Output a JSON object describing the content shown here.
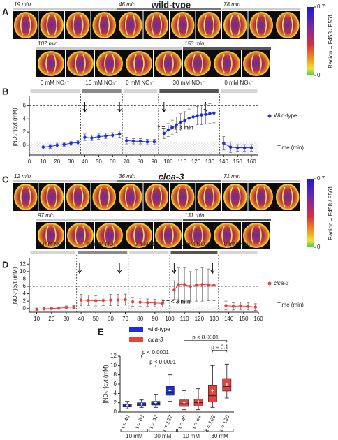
{
  "panel_labels": [
    "A",
    "B",
    "C",
    "D",
    "E"
  ],
  "image_panels": [
    {
      "title": "wild-type",
      "title_color": "#5a2fd8",
      "time_labels": [
        "19 min",
        "46 min",
        "78 min",
        "107 min",
        "153 min"
      ],
      "colorbar_label": "Ranion = F458 / F561",
      "colorbar_lim": [
        0,
        0.7
      ],
      "colorbar_ticks": [
        0.7,
        0
      ]
    },
    {
      "title": "clca-3",
      "title_color": "#e8262b",
      "time_labels": [
        "12 min",
        "36 min",
        "71 min",
        "97 min",
        "131 min"
      ],
      "colorbar_label": "Ranion = F458 / F561",
      "colorbar_lim": [
        0,
        0.7
      ],
      "colorbar_ticks": [
        0.7,
        0
      ]
    }
  ],
  "chart_data": [
    {
      "type": "line",
      "y_label": "[NO₃⁻]cyt (mM)",
      "x_label": "Time (min)",
      "annotation": "τ = 15 ± 3 min",
      "xlim": [
        0,
        165
      ],
      "xticks": [
        0,
        10,
        20,
        30,
        40,
        50,
        60,
        70,
        80,
        90,
        100,
        110,
        120,
        130,
        140,
        150,
        160
      ],
      "ylim": [
        -1.5,
        7
      ],
      "yticks": [
        0,
        2,
        4,
        6
      ],
      "reference_line": 6,
      "shaded_below": 0.5,
      "phases": [
        {
          "label": "0 mM NO₃⁻",
          "start": 0,
          "end": 37,
          "color": "#d6d6d6"
        },
        {
          "label": "10 mM NO₃⁻",
          "start": 37,
          "end": 67,
          "color": "#8c8c8c"
        },
        {
          "label": "0 mM NO₃⁻",
          "start": 67,
          "end": 93,
          "color": "#d6d6d6"
        },
        {
          "label": "30 mM NO₃⁻",
          "start": 93,
          "end": 137,
          "color": "#555555"
        },
        {
          "label": "0 mM NO₃⁻",
          "start": 137,
          "end": 165,
          "color": "#d6d6d6"
        }
      ],
      "arrows": [
        40,
        65,
        97,
        127
      ],
      "x": [
        10,
        15,
        20,
        25,
        30,
        35,
        37,
        40,
        45,
        50,
        55,
        60,
        65,
        67,
        70,
        75,
        80,
        85,
        90,
        93,
        97,
        100,
        103,
        106,
        109,
        112,
        115,
        118,
        121,
        124,
        127,
        130,
        133,
        137,
        140,
        145,
        150,
        155,
        160
      ],
      "series": [
        {
          "name": "Wild-type",
          "color": "#1a2ee0",
          "italic": false,
          "values": [
            -0.3,
            -0.2,
            0,
            0.1,
            0.3,
            0.4,
            null,
            1.2,
            1.1,
            1.3,
            1.4,
            1.5,
            1.7,
            null,
            0.7,
            0.6,
            0.6,
            0.5,
            0.5,
            null,
            1.8,
            2.3,
            2.7,
            3.1,
            3.5,
            3.8,
            4.1,
            4.3,
            4.5,
            4.6,
            4.7,
            4.8,
            4.9,
            null,
            0.3,
            -0.3,
            -0.4,
            -0.4,
            -0.4
          ],
          "errors": [
            0.3,
            0.3,
            0.3,
            0.3,
            0.3,
            0.3,
            null,
            0.5,
            0.4,
            0.4,
            0.4,
            0.4,
            0.5,
            null,
            0.5,
            0.4,
            0.4,
            0.4,
            0.4,
            null,
            0.8,
            1.0,
            1.1,
            1.2,
            1.3,
            1.3,
            1.4,
            1.4,
            1.4,
            1.5,
            1.5,
            1.5,
            1.5,
            null,
            1.0,
            0.8,
            0.5,
            0.5,
            0.5
          ]
        }
      ]
    },
    {
      "type": "line",
      "y_label": "[NO₃⁻]cyt (mM)",
      "x_label": "Time (min)",
      "annotation": "τ = < 3 min",
      "xlim": [
        5,
        160
      ],
      "xticks": [
        10,
        20,
        30,
        40,
        50,
        60,
        70,
        80,
        90,
        100,
        110,
        120,
        130,
        140,
        150,
        160
      ],
      "ylim": [
        -1,
        13
      ],
      "yticks": [
        0,
        2,
        4,
        6,
        8,
        10,
        12
      ],
      "reference_line": 6,
      "shaded_below": 0.5,
      "phases": [
        {
          "label": "0 mM NO₃⁻",
          "start": 5,
          "end": 37,
          "color": "#d6d6d6"
        },
        {
          "label": "10 mM NO₃⁻",
          "start": 37,
          "end": 72,
          "color": "#8c8c8c"
        },
        {
          "label": "0 mM NO₃⁻",
          "start": 72,
          "end": 100,
          "color": "#d6d6d6"
        },
        {
          "label": "30 mM NO₃⁻",
          "start": 100,
          "end": 133,
          "color": "#555555"
        },
        {
          "label": "0 mM NO₃⁻",
          "start": 133,
          "end": 160,
          "color": "#d6d6d6"
        }
      ],
      "arrows": [
        39,
        66,
        103,
        129
      ],
      "x": [
        10,
        15,
        20,
        25,
        30,
        35,
        37,
        40,
        45,
        50,
        55,
        60,
        65,
        70,
        72,
        75,
        80,
        85,
        90,
        95,
        100,
        103,
        106,
        110,
        114,
        118,
        122,
        126,
        130,
        133,
        138,
        143,
        148,
        153,
        158
      ],
      "series": [
        {
          "name": "clca-3",
          "color": "#e8413c",
          "italic": true,
          "values": [
            -0.2,
            -0.1,
            0,
            0.1,
            0.3,
            0.4,
            null,
            2.3,
            2.2,
            2.1,
            2.2,
            2.3,
            2.3,
            2.4,
            null,
            1.8,
            1.7,
            1.6,
            1.5,
            1.4,
            null,
            5,
            6.5,
            6.5,
            6,
            6.3,
            6.5,
            6.4,
            6.3,
            null,
            0.8,
            0.6,
            0.7,
            0.6,
            0.4
          ],
          "errors": [
            0.3,
            0.3,
            0.3,
            0.3,
            0.4,
            0.4,
            null,
            1.5,
            1.4,
            1.4,
            1.4,
            1.5,
            1.5,
            1.5,
            null,
            1.2,
            1.1,
            1.0,
            1.0,
            1.0,
            null,
            2.5,
            4.5,
            4.5,
            4,
            4.3,
            4.5,
            4.3,
            4.2,
            null,
            1.2,
            1.0,
            1.0,
            1.0,
            0.9
          ]
        }
      ]
    },
    {
      "type": "box",
      "y_label": "[NO₃⁻]cyt (mM)",
      "ylim": [
        0,
        12
      ],
      "yticks": [
        0,
        2,
        4,
        6,
        8,
        10,
        12
      ],
      "series": [
        {
          "name": "wild-type",
          "color": "#1a2ee0",
          "categories": [
            "t = 40",
            "t = 63",
            "t = 97",
            "t = 127"
          ],
          "group_labels": [
            "10 mM",
            "30 mM"
          ],
          "min": [
            0.7,
            1.0,
            1.0,
            2.3
          ],
          "q1": [
            1.1,
            1.4,
            1.5,
            3.6
          ],
          "median": [
            1.4,
            1.7,
            1.9,
            4.3
          ],
          "q3": [
            1.7,
            2.0,
            2.3,
            5.5
          ],
          "max": [
            2.3,
            2.6,
            3.8,
            8.0
          ],
          "mean": [
            1.4,
            1.7,
            2.0,
            4.6
          ]
        },
        {
          "name": "clca-3",
          "color": "#e8413c",
          "categories": [
            "t = 40",
            "t = 64",
            "t = 102",
            "t = 130"
          ],
          "group_labels": [
            "10 mM",
            "30 mM"
          ],
          "min": [
            0.5,
            0.5,
            1.0,
            3.0
          ],
          "q1": [
            1.2,
            1.3,
            2.2,
            4.5
          ],
          "median": [
            1.8,
            2.0,
            3.5,
            5.5
          ],
          "q3": [
            2.6,
            2.8,
            5.8,
            7.2
          ],
          "max": [
            4.6,
            5.0,
            10.0,
            10.3
          ],
          "mean": [
            2.0,
            2.2,
            4.6,
            6.0
          ]
        }
      ],
      "comparisons": [
        {
          "label": "p < 0.0001",
          "from": [
            0,
            1
          ],
          "to": [
            0,
            3
          ]
        },
        {
          "label": "p < 0.0001",
          "from": [
            0,
            2
          ],
          "to": [
            0,
            3
          ]
        },
        {
          "label": "p < 0.0001",
          "from": [
            1,
            0
          ],
          "to": [
            1,
            3
          ]
        },
        {
          "label": "p = 0.1",
          "from": [
            1,
            2
          ],
          "to": [
            1,
            3
          ]
        }
      ]
    }
  ]
}
